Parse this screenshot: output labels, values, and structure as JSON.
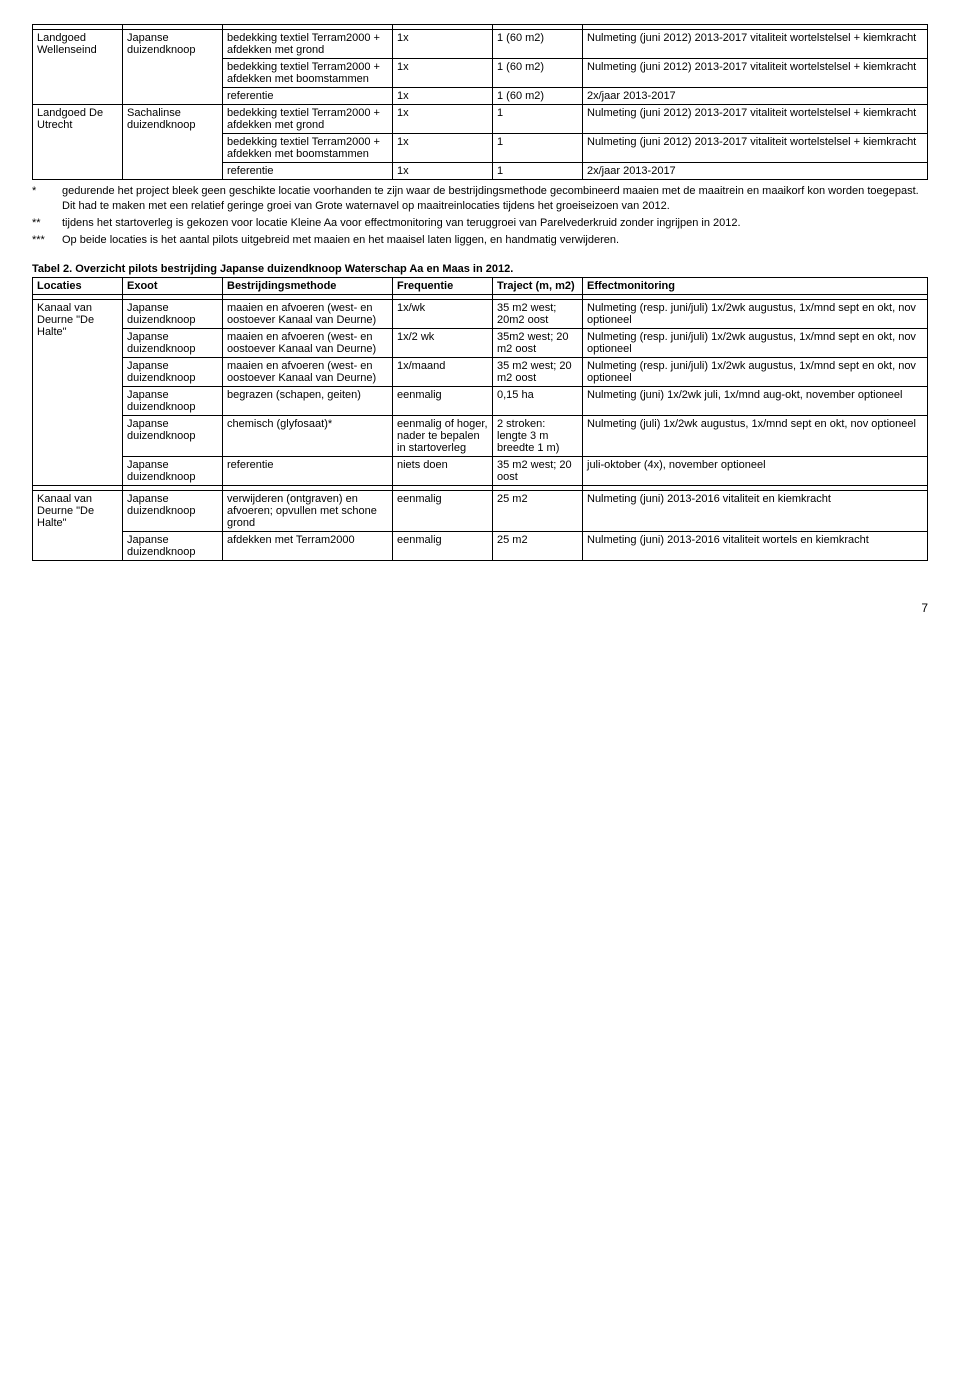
{
  "table1": {
    "rows": [
      {
        "loc": "Landgoed Wellenseind",
        "exoot": "Japanse duizendknoop",
        "sub": [
          {
            "method": "bedekking textiel Terram2000 + afdekken met grond",
            "freq": "1x",
            "traject": "1 (60 m2)",
            "effect": "Nulmeting (juni 2012) 2013-2017 vitaliteit wortelstelsel + kiemkracht"
          },
          {
            "method": "bedekking textiel Terram2000 + afdekken met boomstammen",
            "freq": "1x",
            "traject": "1 (60 m2)",
            "effect": "Nulmeting (juni 2012) 2013-2017 vitaliteit wortelstelsel + kiemkracht"
          },
          {
            "method": "referentie",
            "freq": "1x",
            "traject": "1 (60 m2)",
            "effect": "2x/jaar 2013-2017"
          }
        ]
      },
      {
        "loc": "Landgoed De Utrecht",
        "exoot": "Sachalinse duizendknoop",
        "sub": [
          {
            "method": "bedekking textiel Terram2000 + afdekken met grond",
            "freq": "1x",
            "traject": "1",
            "effect": "Nulmeting (juni 2012) 2013-2017 vitaliteit wortelstelsel + kiemkracht"
          },
          {
            "method": "bedekking textiel Terram2000 + afdekken met boomstammen",
            "freq": "1x",
            "traject": "1",
            "effect": "Nulmeting (juni 2012) 2013-2017 vitaliteit wortelstelsel + kiemkracht"
          },
          {
            "method": "referentie",
            "freq": "1x",
            "traject": "1",
            "effect": "2x/jaar 2013-2017"
          }
        ]
      }
    ]
  },
  "footnotes": [
    {
      "star": "*",
      "text": "gedurende het project bleek geen geschikte locatie voorhanden te zijn waar de bestrijdingsmethode gecombineerd maaien met de maaitrein en maaikorf kon worden toegepast. Dit had te maken met een relatief geringe groei van Grote waternavel op maaitreinlocaties tijdens het groeiseizoen van 2012."
    },
    {
      "star": "**",
      "text": "tijdens het startoverleg is gekozen voor locatie Kleine Aa voor effectmonitoring van teruggroei van Parelvederkruid zonder ingrijpen in 2012."
    },
    {
      "star": "***",
      "text": "Op beide locaties is het aantal pilots uitgebreid met maaien en het maaisel laten liggen, en handmatig verwijderen."
    }
  ],
  "table2": {
    "title": "Tabel 2. Overzicht pilots bestrijding Japanse duizendknoop Waterschap Aa en Maas in 2012.",
    "headers": [
      "Locaties",
      "Exoot",
      "Bestrijdingsmethode",
      "Frequentie",
      "Traject (m, m2)",
      "Effectmonitoring"
    ],
    "groups": [
      {
        "loc": "Kanaal van Deurne \"De Halte\"",
        "rows": [
          {
            "exoot": "Japanse duizendknoop",
            "method": "maaien en afvoeren (west- en oostoever Kanaal van Deurne)",
            "freq": "1x/wk",
            "traject": "35 m2 west; 20m2 oost",
            "effect": "Nulmeting (resp. juni/juli) 1x/2wk augustus, 1x/mnd sept en okt, nov optioneel"
          },
          {
            "exoot": "Japanse duizendknoop",
            "method": "maaien en afvoeren (west- en oostoever Kanaal van Deurne)",
            "freq": "1x/2 wk",
            "traject": "35m2 west; 20 m2 oost",
            "effect": "Nulmeting (resp. juni/juli) 1x/2wk augustus, 1x/mnd sept en okt, nov optioneel"
          },
          {
            "exoot": "Japanse duizendknoop",
            "method": "maaien en afvoeren (west- en oostoever Kanaal van Deurne)",
            "freq": "1x/maand",
            "traject": "35 m2 west; 20 m2 oost",
            "effect": "Nulmeting (resp. juni/juli) 1x/2wk augustus, 1x/mnd sept en okt, nov optioneel"
          },
          {
            "exoot": "Japanse duizendknoop",
            "method": "begrazen (schapen, geiten)",
            "freq": "eenmalig",
            "traject": "0,15 ha",
            "effect": "Nulmeting (juni) 1x/2wk juli, 1x/mnd aug-okt, november optioneel"
          },
          {
            "exoot": "Japanse duizendknoop",
            "method": "chemisch (glyfosaat)*",
            "freq": "eenmalig of hoger, nader te bepalen in startoverleg",
            "traject": "2 stroken: lengte 3 m breedte 1 m)",
            "effect": "Nulmeting (juli) 1x/2wk augustus, 1x/mnd sept en okt, nov optioneel"
          },
          {
            "exoot": "Japanse duizendknoop",
            "method": "referentie",
            "freq": "niets doen",
            "traject": "35 m2 west; 20 oost",
            "effect": "juli-oktober (4x), november optioneel"
          }
        ]
      },
      {
        "loc": "Kanaal van Deurne \"De Halte\"",
        "rows": [
          {
            "exoot": "Japanse duizendknoop",
            "method": "verwijderen (ontgraven) en afvoeren; opvullen met schone grond",
            "freq": "eenmalig",
            "traject": "25 m2",
            "effect": "Nulmeting (juni) 2013-2016 vitaliteit en kiemkracht"
          },
          {
            "exoot": "Japanse duizendknoop",
            "method": "afdekken met Terram2000",
            "freq": "eenmalig",
            "traject": "25 m2",
            "effect": "Nulmeting (juni) 2013-2016 vitaliteit wortels en kiemkracht"
          }
        ]
      }
    ]
  },
  "pageNumber": "7"
}
